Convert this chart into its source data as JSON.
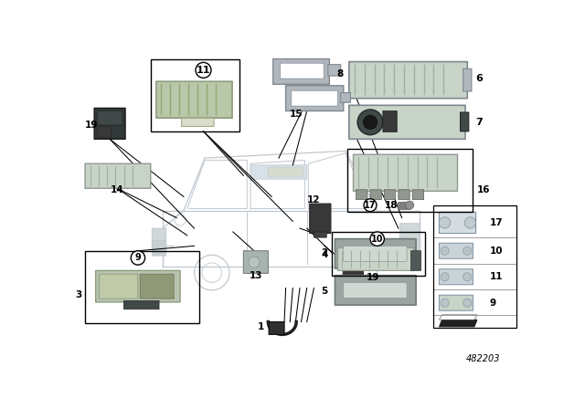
{
  "bg_color": "#ffffff",
  "diagram_number": "482203",
  "fig_width": 6.4,
  "fig_height": 4.48,
  "dpi": 100,
  "car": {
    "body_color": "#e8ecf0",
    "line_color": "#b0b8c0",
    "line_width": 0.8
  },
  "lamp_color": "#c8d4c8",
  "lamp_edge": "#909890",
  "gray_color": "#b0b8be",
  "gray_edge": "#808890",
  "dark_color": "#404848",
  "dark_edge": "#202828"
}
